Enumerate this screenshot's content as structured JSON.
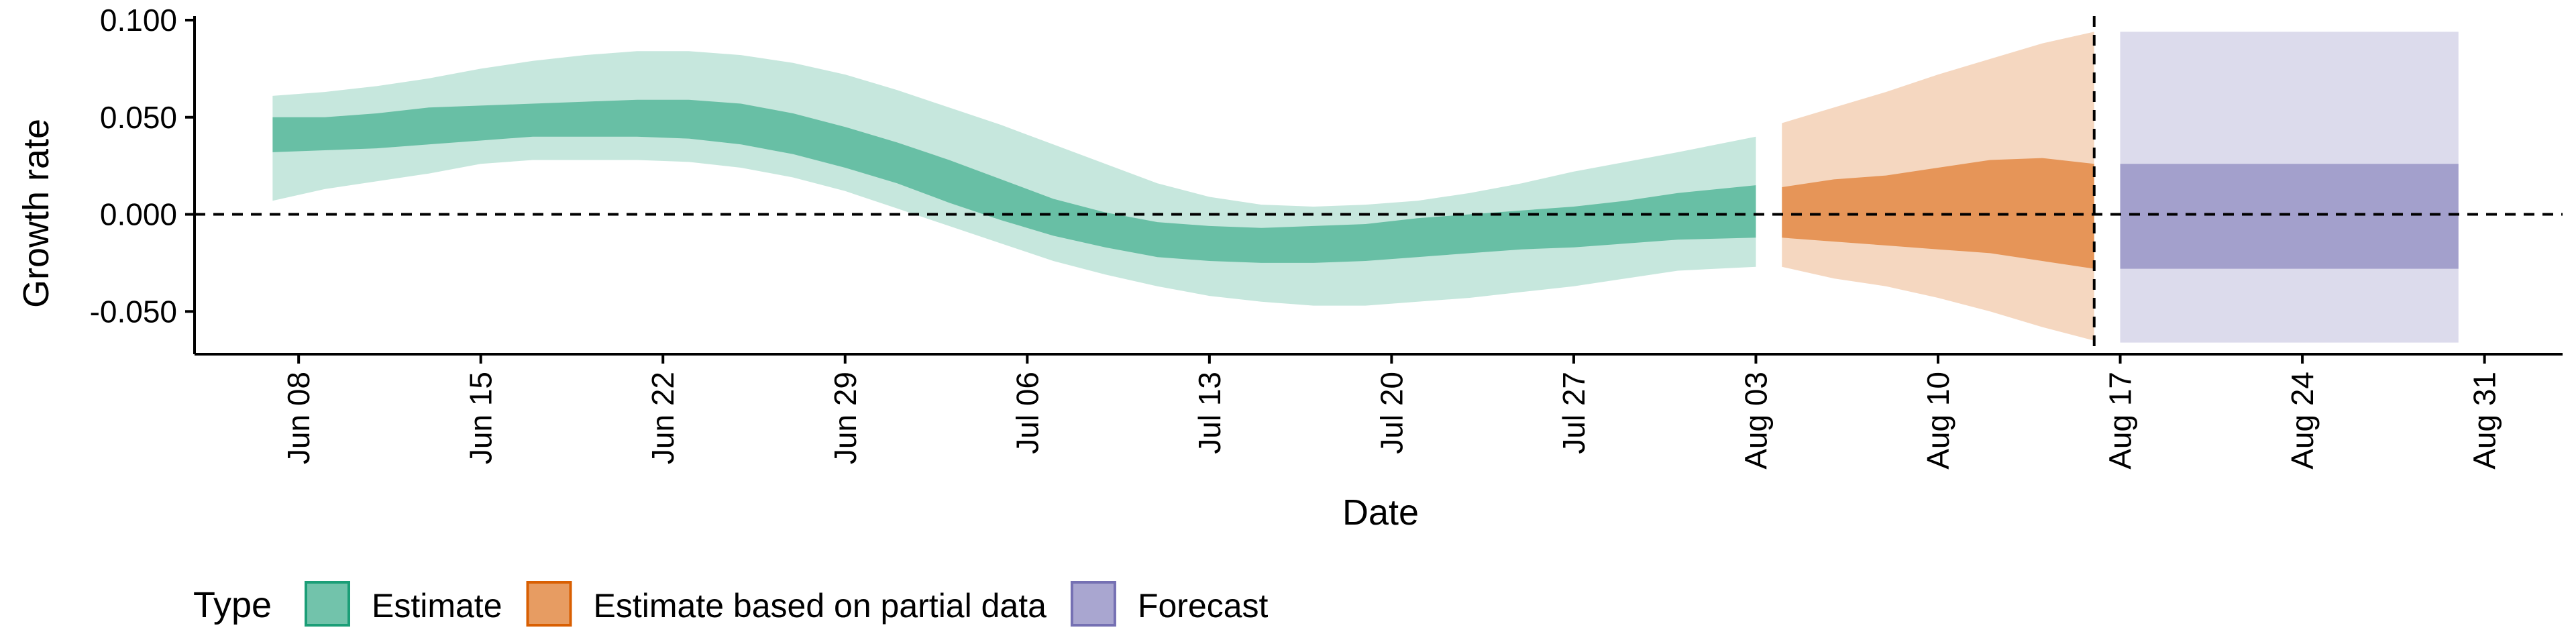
{
  "chart_data": {
    "type": "area",
    "xlabel": "Date",
    "ylabel": "Growth rate",
    "ylim": [
      -0.072,
      0.1
    ],
    "xlim": [
      "2020-06-04",
      "2020-09-03"
    ],
    "y_ticks": [
      "0.100",
      "0.050",
      "0.000",
      "-0.050"
    ],
    "y_tick_values": [
      0.1,
      0.05,
      0.0,
      -0.05
    ],
    "x_ticks": [
      "Jun 08",
      "Jun 15",
      "Jun 22",
      "Jun 29",
      "Jul 06",
      "Jul 13",
      "Jul 20",
      "Jul 27",
      "Aug 03",
      "Aug 10",
      "Aug 17",
      "Aug 24",
      "Aug 31"
    ],
    "x_tick_dates": [
      "2020-06-08",
      "2020-06-15",
      "2020-06-22",
      "2020-06-29",
      "2020-07-06",
      "2020-07-13",
      "2020-07-20",
      "2020-07-27",
      "2020-08-03",
      "2020-08-10",
      "2020-08-17",
      "2020-08-24",
      "2020-08-31"
    ],
    "reference_line_y": 0.0,
    "vertical_line_x": "2020-08-16",
    "legend": {
      "title": "Type",
      "position": "bottom-left",
      "entries": [
        "Estimate",
        "Estimate based on partial data",
        "Forecast"
      ]
    },
    "series": [
      {
        "name": "Estimate",
        "color": "#1b9e77",
        "x": [
          "2020-06-07",
          "2020-06-09",
          "2020-06-11",
          "2020-06-13",
          "2020-06-15",
          "2020-06-17",
          "2020-06-19",
          "2020-06-21",
          "2020-06-23",
          "2020-06-25",
          "2020-06-27",
          "2020-06-29",
          "2020-07-01",
          "2020-07-03",
          "2020-07-05",
          "2020-07-07",
          "2020-07-09",
          "2020-07-11",
          "2020-07-13",
          "2020-07-15",
          "2020-07-17",
          "2020-07-19",
          "2020-07-21",
          "2020-07-23",
          "2020-07-25",
          "2020-07-27",
          "2020-07-29",
          "2020-07-31",
          "2020-08-03"
        ],
        "lower_90": [
          0.007,
          0.013,
          0.017,
          0.021,
          0.026,
          0.028,
          0.028,
          0.028,
          0.027,
          0.024,
          0.019,
          0.012,
          0.003,
          -0.006,
          -0.015,
          -0.024,
          -0.031,
          -0.037,
          -0.042,
          -0.045,
          -0.047,
          -0.047,
          -0.045,
          -0.043,
          -0.04,
          -0.037,
          -0.033,
          -0.029,
          -0.027
        ],
        "upper_90": [
          0.061,
          0.063,
          0.066,
          0.07,
          0.075,
          0.079,
          0.082,
          0.084,
          0.084,
          0.082,
          0.078,
          0.072,
          0.064,
          0.055,
          0.046,
          0.036,
          0.026,
          0.016,
          0.009,
          0.005,
          0.004,
          0.005,
          0.007,
          0.011,
          0.016,
          0.022,
          0.027,
          0.032,
          0.04
        ],
        "lower_50": [
          0.032,
          0.033,
          0.034,
          0.036,
          0.038,
          0.04,
          0.04,
          0.04,
          0.039,
          0.036,
          0.031,
          0.024,
          0.016,
          0.006,
          -0.003,
          -0.011,
          -0.017,
          -0.022,
          -0.024,
          -0.025,
          -0.025,
          -0.024,
          -0.022,
          -0.02,
          -0.018,
          -0.017,
          -0.015,
          -0.013,
          -0.012
        ],
        "upper_50": [
          0.05,
          0.05,
          0.052,
          0.055,
          0.056,
          0.057,
          0.058,
          0.059,
          0.059,
          0.057,
          0.052,
          0.045,
          0.037,
          0.028,
          0.018,
          0.008,
          0.001,
          -0.004,
          -0.006,
          -0.007,
          -0.006,
          -0.005,
          -0.002,
          0.0,
          0.002,
          0.004,
          0.007,
          0.011,
          0.015
        ]
      },
      {
        "name": "Estimate based on partial data",
        "color": "#d95f02",
        "x": [
          "2020-08-04",
          "2020-08-06",
          "2020-08-08",
          "2020-08-10",
          "2020-08-12",
          "2020-08-14",
          "2020-08-16"
        ],
        "lower_90": [
          -0.027,
          -0.033,
          -0.037,
          -0.043,
          -0.05,
          -0.058,
          -0.065
        ],
        "upper_90": [
          0.047,
          0.055,
          0.063,
          0.072,
          0.08,
          0.088,
          0.094
        ],
        "lower_50": [
          -0.012,
          -0.014,
          -0.016,
          -0.018,
          -0.02,
          -0.024,
          -0.028
        ],
        "upper_50": [
          0.014,
          0.018,
          0.02,
          0.024,
          0.028,
          0.029,
          0.026
        ]
      },
      {
        "name": "Forecast",
        "color": "#7570b3",
        "x": [
          "2020-08-17",
          "2020-08-30"
        ],
        "lower_90": [
          -0.066,
          -0.066
        ],
        "upper_90": [
          0.094,
          0.094
        ],
        "lower_50": [
          -0.028,
          -0.028
        ],
        "upper_50": [
          0.026,
          0.026
        ]
      }
    ]
  }
}
